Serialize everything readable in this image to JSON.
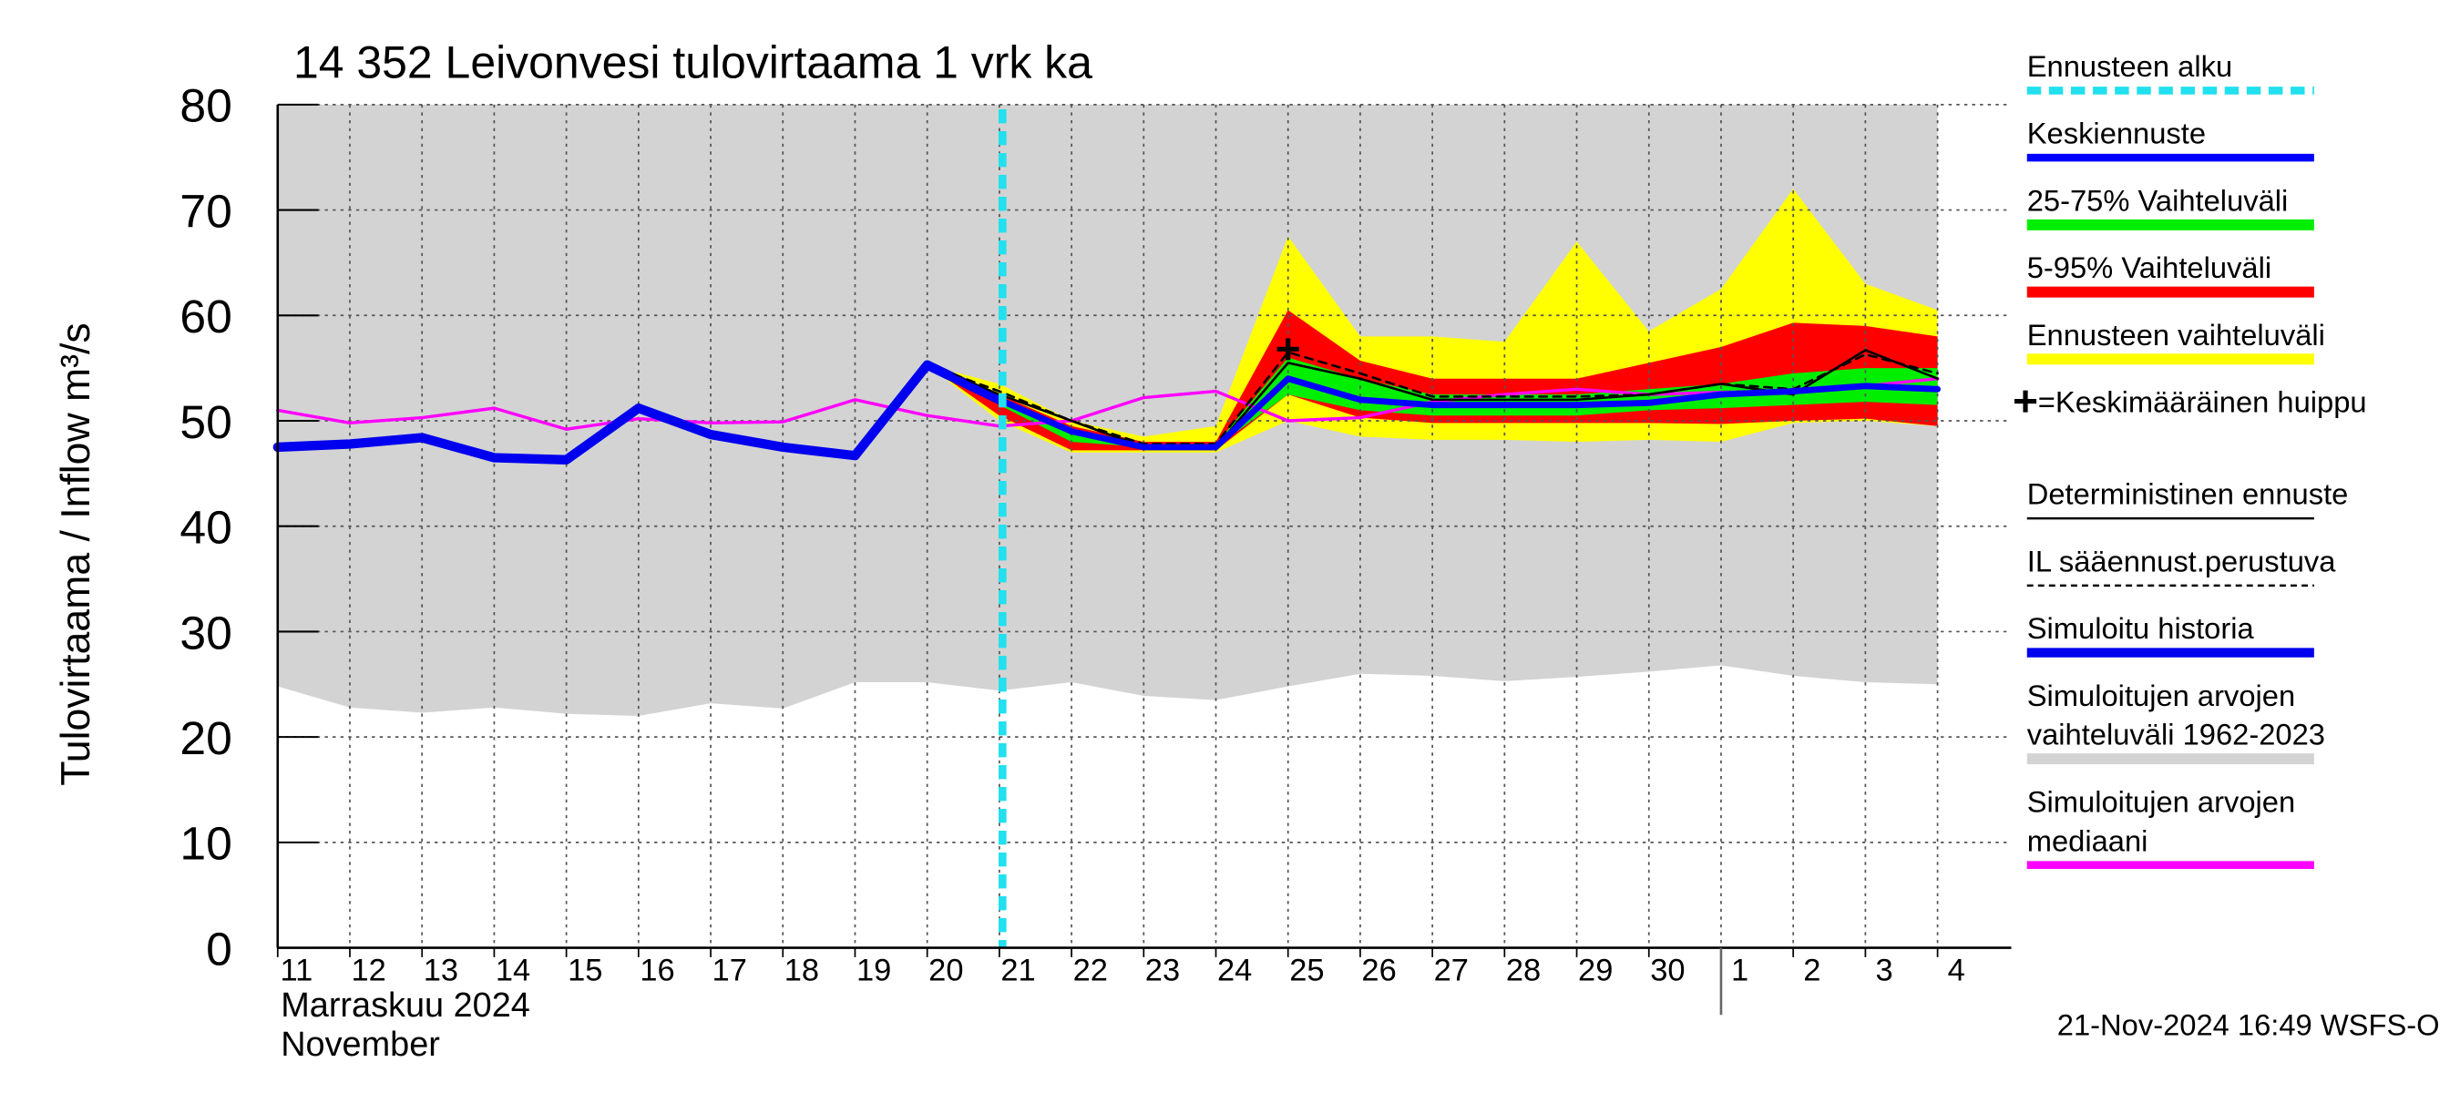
{
  "chart_data": {
    "type": "line",
    "title": "14 352 Leivonvesi tulovirtaama 1 vrk ka",
    "y_label": "Tulovirtaama / Inflow    m³/s",
    "x_label": [
      "Marraskuu 2024",
      "November"
    ],
    "timestamp": "21-Nov-2024 16:49 WSFS-O",
    "categories": [
      "11",
      "12",
      "13",
      "14",
      "15",
      "16",
      "17",
      "18",
      "19",
      "20",
      "21",
      "22",
      "23",
      "24",
      "25",
      "26",
      "27",
      "28",
      "29",
      "30",
      "1",
      "2",
      "3",
      "4"
    ],
    "ylim": [
      0,
      80
    ],
    "yticks": [
      0,
      10,
      20,
      30,
      40,
      50,
      60,
      70,
      80
    ],
    "grid": true,
    "forecast_start": {
      "name": "Ennusteen alku",
      "color": "#22e0ee",
      "category": "21"
    },
    "series": [
      {
        "name": "Keskiennuste",
        "kind": "line",
        "color": "#0000ff",
        "width": 4,
        "values": [
          null,
          null,
          null,
          null,
          null,
          null,
          null,
          null,
          null,
          55.3,
          52,
          49,
          47.5,
          47.5,
          54,
          52,
          51.5,
          51.5,
          51.5,
          51.7,
          52.5,
          52.8,
          53.3,
          53
        ]
      },
      {
        "name": "25-75% Vaihteluväli",
        "kind": "band",
        "color": "#00ee00",
        "upper": [
          null,
          null,
          null,
          null,
          null,
          null,
          null,
          null,
          null,
          55.3,
          52.2,
          49.2,
          47.8,
          47.8,
          56,
          54,
          52.5,
          52.5,
          52.5,
          53,
          53.5,
          54.5,
          55,
          55
        ],
        "lower": [
          null,
          null,
          null,
          null,
          null,
          null,
          null,
          null,
          null,
          55.3,
          51.5,
          48,
          47.5,
          47.5,
          52.5,
          51,
          50.5,
          50.5,
          50.5,
          51,
          51.2,
          51.5,
          51.8,
          51.5
        ]
      },
      {
        "name": "5-95% Vaihteluväli",
        "kind": "band",
        "color": "#ff0000",
        "upper": [
          null,
          null,
          null,
          null,
          null,
          null,
          null,
          null,
          null,
          55.3,
          52.5,
          49.5,
          48,
          48,
          60.5,
          55.7,
          54,
          54,
          54,
          55.5,
          57,
          59.3,
          59,
          58
        ],
        "lower": [
          null,
          null,
          null,
          null,
          null,
          null,
          null,
          null,
          null,
          55.3,
          50.5,
          47.2,
          47.2,
          47.2,
          52.5,
          50.3,
          49.8,
          49.8,
          49.8,
          49.8,
          49.7,
          50,
          50.2,
          49.5
        ]
      },
      {
        "name": "Ennusteen vaihteluväli",
        "kind": "band",
        "color": "#ffff00",
        "upper": [
          null,
          null,
          null,
          null,
          null,
          null,
          null,
          null,
          null,
          55.3,
          53.5,
          50,
          48.5,
          49.5,
          67.5,
          58,
          58,
          57.5,
          67,
          58.5,
          62.5,
          72,
          63,
          60.5
        ],
        "lower": [
          null,
          null,
          null,
          null,
          null,
          null,
          null,
          null,
          null,
          55.3,
          50,
          47,
          47,
          47,
          50,
          48.5,
          48.2,
          48.2,
          48,
          48.2,
          48,
          49.8,
          50,
          49.5
        ]
      },
      {
        "name": "=Keskimääräinen huippu",
        "kind": "scatter",
        "color": "#000000",
        "values": [
          null,
          null,
          null,
          null,
          null,
          null,
          null,
          null,
          null,
          null,
          null,
          null,
          null,
          null,
          56.8,
          null,
          null,
          null,
          null,
          null,
          null,
          null,
          null,
          null
        ]
      },
      {
        "name": "Deterministinen ennuste",
        "kind": "line",
        "color": "#000000",
        "width": 1.5,
        "values": [
          null,
          null,
          null,
          null,
          null,
          null,
          null,
          null,
          null,
          55.3,
          52.5,
          50,
          47.5,
          47.5,
          55.5,
          54,
          52,
          52,
          52,
          52.5,
          53.5,
          52.5,
          56.7,
          54
        ]
      },
      {
        "name": "IL sääennust.perustuva",
        "kind": "line",
        "color": "#000000",
        "width": 1.5,
        "dash": true,
        "values": [
          null,
          null,
          null,
          null,
          null,
          null,
          null,
          null,
          null,
          55.3,
          52.8,
          50,
          47.8,
          47.8,
          56.5,
          54.5,
          52.3,
          52.3,
          52.3,
          52.5,
          53.5,
          53,
          56.3,
          54.5
        ]
      },
      {
        "name": "Simuloitu historia",
        "kind": "line",
        "color": "#0000ee",
        "width": 6,
        "values": [
          47.5,
          47.8,
          48.4,
          46.5,
          46.3,
          51.2,
          48.7,
          47.5,
          46.7,
          55.3,
          52,
          null,
          null,
          null,
          null,
          null,
          null,
          null,
          null,
          null,
          null,
          null,
          null,
          null
        ]
      },
      {
        "name": [
          "Simuloitujen arvojen",
          "vaihteluväli 1962-2023"
        ],
        "kind": "band",
        "color": "#d3d3d3",
        "upper": [
          80,
          80,
          80,
          80,
          80,
          80,
          80,
          80,
          80,
          80,
          80,
          80,
          80,
          80,
          80,
          80,
          80,
          80,
          80,
          80,
          80,
          80,
          80,
          80
        ],
        "lower": [
          24.8,
          22.8,
          22.3,
          22.8,
          22.2,
          22,
          23.2,
          22.7,
          25.2,
          25.2,
          24.4,
          25.2,
          23.9,
          23.5,
          24.8,
          26,
          25.8,
          25.3,
          25.7,
          26.2,
          26.8,
          25.8,
          25.2,
          25
        ]
      },
      {
        "name": [
          "Simuloitujen arvojen",
          "mediaani"
        ],
        "kind": "line",
        "color": "#ff00ff",
        "width": 2,
        "values": [
          51,
          49.8,
          50.3,
          51.2,
          49.2,
          50.2,
          49.8,
          49.9,
          52,
          50.5,
          49.5,
          50,
          52.2,
          52.8,
          50,
          50.3,
          51.8,
          52.5,
          53,
          52.5,
          52.7,
          52.8,
          53.3,
          54
        ]
      }
    ]
  }
}
